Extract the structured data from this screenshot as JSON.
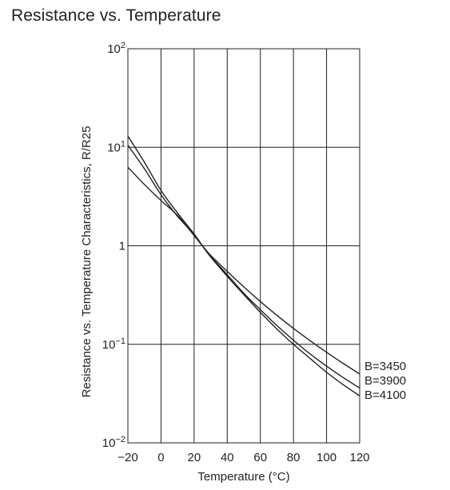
{
  "chart_data": {
    "type": "line",
    "title": "Resistance vs. Temperature",
    "xlabel": "Temperature (°C)",
    "ylabel": "Resistance vs. Temperature Characteristics, R/R25",
    "xlim": [
      -20,
      120
    ],
    "ylim": [
      0.01,
      100
    ],
    "yscale": "log",
    "grid": true,
    "x_ticks": [
      {
        "value": -20,
        "label": "−20"
      },
      {
        "value": 0,
        "label": "0"
      },
      {
        "value": 20,
        "label": "20"
      },
      {
        "value": 40,
        "label": "40"
      },
      {
        "value": 60,
        "label": "60"
      },
      {
        "value": 80,
        "label": "80"
      },
      {
        "value": 100,
        "label": "100"
      },
      {
        "value": 120,
        "label": "120"
      }
    ],
    "x_grid": [
      -20,
      0,
      20,
      40,
      60,
      80,
      100,
      120
    ],
    "y_ticks": [
      {
        "value": 100,
        "base": "10",
        "exp": "2"
      },
      {
        "value": 10,
        "base": "10",
        "exp": "1"
      },
      {
        "value": 1,
        "base": "1",
        "exp": ""
      },
      {
        "value": 0.1,
        "base": "10",
        "exp": "−1"
      },
      {
        "value": 0.01,
        "base": "10",
        "exp": "−2"
      }
    ],
    "series": [
      {
        "name": "B=3450",
        "x": [
          -20,
          -10,
          0,
          10,
          20,
          25,
          30,
          40,
          50,
          60,
          70,
          80,
          90,
          100,
          110,
          120
        ],
        "y": [
          6.27,
          4.19,
          2.88,
          2.03,
          1.27,
          1.0,
          0.8,
          0.55,
          0.383,
          0.272,
          0.197,
          0.145,
          0.109,
          0.083,
          0.064,
          0.05
        ]
      },
      {
        "name": "B=3900",
        "x": [
          -20,
          -10,
          0,
          10,
          20,
          25,
          30,
          40,
          50,
          60,
          70,
          80,
          90,
          100,
          110,
          120
        ],
        "y": [
          10.5,
          6.05,
          3.3,
          1.99,
          1.3,
          1.0,
          0.78,
          0.51,
          0.33,
          0.225,
          0.155,
          0.11,
          0.08,
          0.06,
          0.046,
          0.036
        ]
      },
      {
        "name": "B=4100",
        "x": [
          -20,
          -10,
          0,
          10,
          20,
          25,
          30,
          40,
          50,
          60,
          70,
          80,
          90,
          100,
          110,
          120
        ],
        "y": [
          13.0,
          7.05,
          3.65,
          2.15,
          1.32,
          1.0,
          0.77,
          0.49,
          0.32,
          0.211,
          0.143,
          0.1,
          0.072,
          0.052,
          0.039,
          0.03
        ]
      }
    ],
    "series_label_placement": "right-of-plot"
  }
}
